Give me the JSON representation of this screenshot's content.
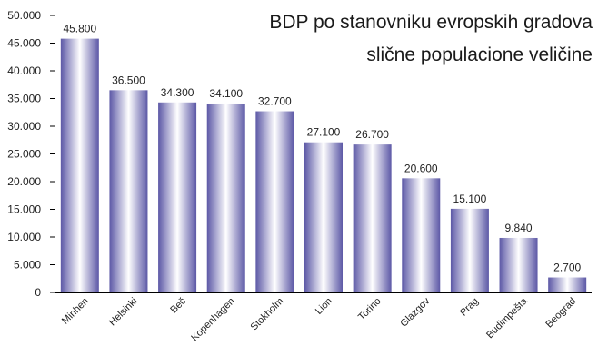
{
  "chart_data": {
    "type": "bar",
    "title_lines": [
      "BDP po stanovniku evropskih gradova",
      "slične populacione veličine"
    ],
    "xlabel": "",
    "ylabel": "",
    "categories": [
      "Minhen",
      "Helsinki",
      "Beč",
      "Kopenhagen",
      "Stokholm",
      "Lion",
      "Torino",
      "Glazgov",
      "Prag",
      "Budimpešta",
      "Beograd"
    ],
    "values": [
      45800,
      36500,
      34300,
      34100,
      32700,
      27100,
      26700,
      20600,
      15100,
      9840,
      2700
    ],
    "value_labels": [
      "45.800",
      "36.500",
      "34.300",
      "34.100",
      "32.700",
      "27.100",
      "26.700",
      "20.600",
      "15.100",
      "9.840",
      "2.700"
    ],
    "ylim": [
      0,
      50000
    ],
    "yticks": [
      0,
      5000,
      10000,
      15000,
      20000,
      25000,
      30000,
      35000,
      40000,
      45000,
      50000
    ],
    "ytick_labels": [
      "0",
      "5.000",
      "10.000",
      "15.000",
      "20.000",
      "25.000",
      "30.000",
      "35.000",
      "40.000",
      "45.000",
      "50.000"
    ],
    "grid": false,
    "legend": "none",
    "colors": {
      "bar_dark": "#5c58a6",
      "bar_light": "#ffffff",
      "axis": "#000000"
    }
  }
}
